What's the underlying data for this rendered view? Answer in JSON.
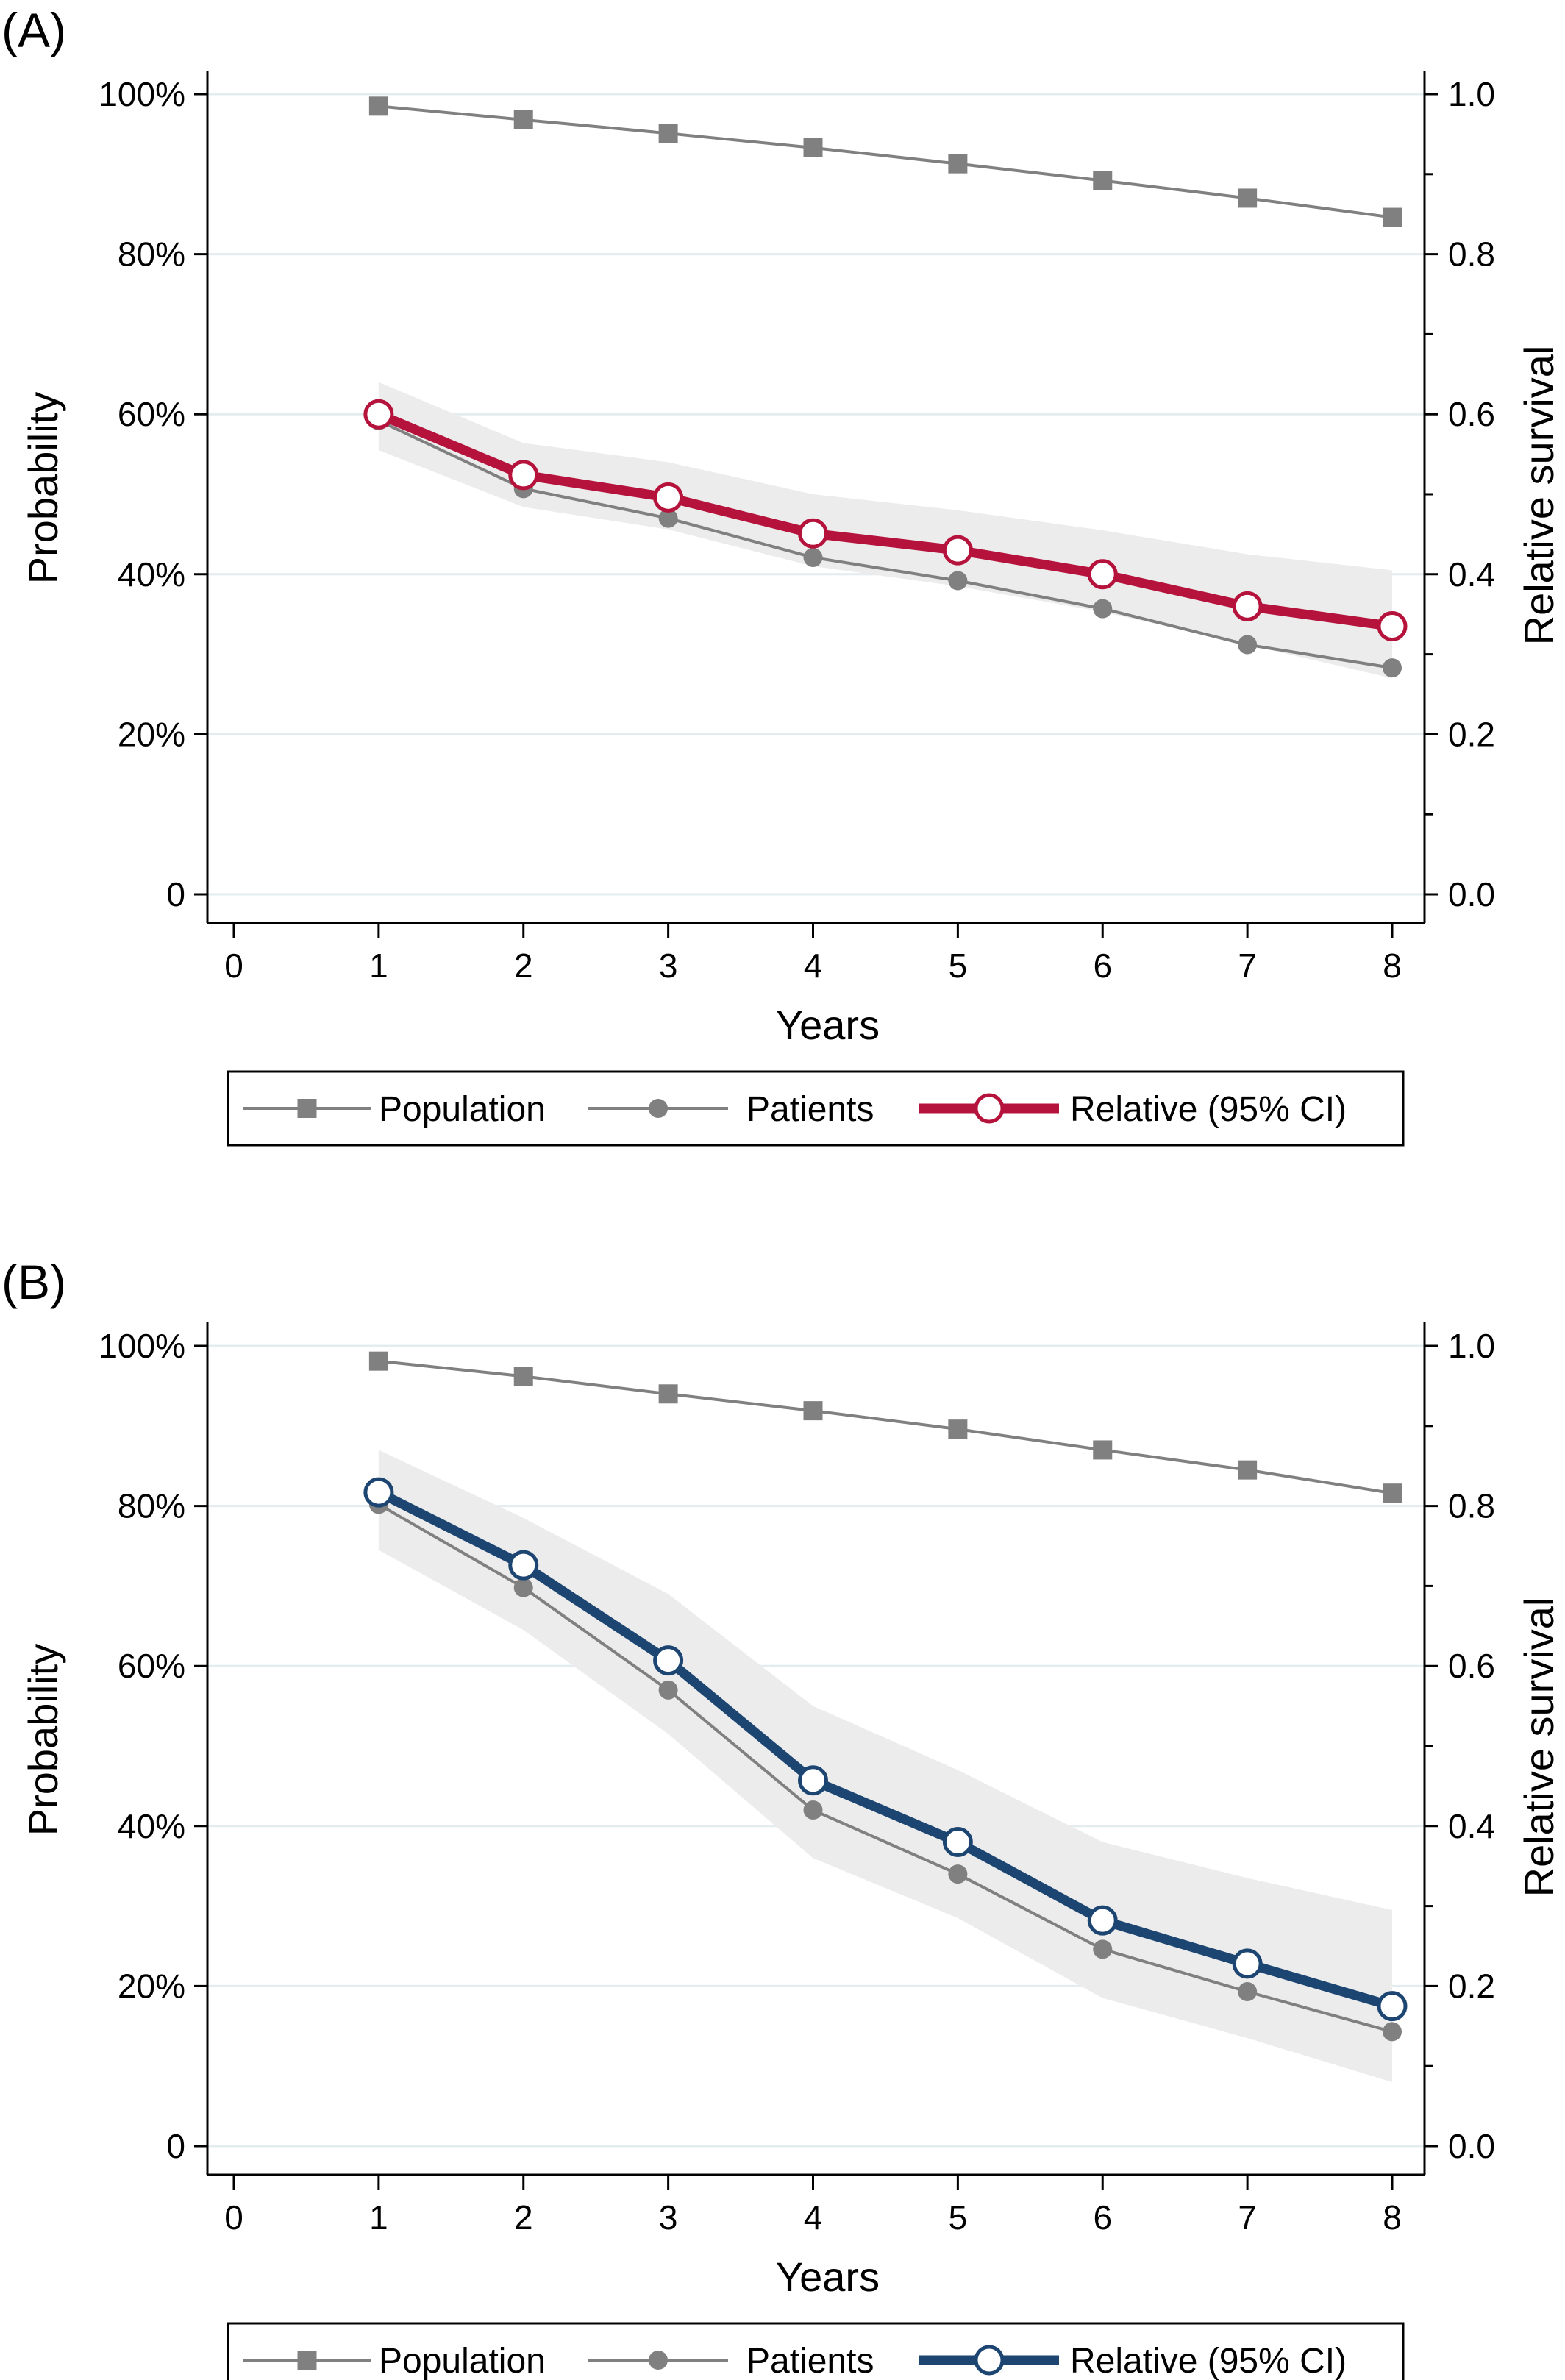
{
  "chart_data": [
    {
      "type": "line",
      "panel_label": "(A)",
      "xlabel": "Years",
      "ylabel": "Probability",
      "ylabel_right": "Relative survival",
      "x_ticks": [
        "0",
        "1",
        "2",
        "3",
        "4",
        "5",
        "6",
        "7",
        "8"
      ],
      "y_ticks_left": [
        "0",
        "20%",
        "40%",
        "60%",
        "80%",
        "100%"
      ],
      "y_ticks_right": [
        "0.0",
        "0.2",
        "0.4",
        "0.6",
        "0.8",
        "1.0"
      ],
      "xlim": [
        0,
        8
      ],
      "ylim": [
        0,
        1
      ],
      "grid": true,
      "legend_position": "bottom",
      "x": [
        1,
        2,
        3,
        4,
        5,
        6,
        7,
        8
      ],
      "series": [
        {
          "name": "Population",
          "values": [
            0.985,
            0.968,
            0.951,
            0.933,
            0.913,
            0.892,
            0.87,
            0.846
          ],
          "color": "#808080",
          "marker": "square"
        },
        {
          "name": "Patients",
          "values": [
            0.592,
            0.507,
            0.47,
            0.421,
            0.392,
            0.357,
            0.312,
            0.283
          ],
          "color": "#808080",
          "marker": "circle"
        },
        {
          "name": "Relative (95% CI)",
          "values": [
            0.6,
            0.524,
            0.496,
            0.451,
            0.43,
            0.4,
            0.36,
            0.335
          ],
          "color": "#b5123c",
          "marker": "hollow-circle",
          "ci_lower": [
            0.555,
            0.484,
            0.456,
            0.41,
            0.385,
            0.353,
            0.312,
            0.27
          ],
          "ci_upper": [
            0.64,
            0.564,
            0.54,
            0.5,
            0.48,
            0.455,
            0.425,
            0.405
          ]
        }
      ],
      "band_color": "#ececec"
    },
    {
      "type": "line",
      "panel_label": "(B)",
      "xlabel": "Years",
      "ylabel": "Probability",
      "ylabel_right": "Relative survival",
      "x_ticks": [
        "0",
        "1",
        "2",
        "3",
        "4",
        "5",
        "6",
        "7",
        "8"
      ],
      "y_ticks_left": [
        "0",
        "20%",
        "40%",
        "60%",
        "80%",
        "100%"
      ],
      "y_ticks_right": [
        "0.0",
        "0.2",
        "0.4",
        "0.6",
        "0.8",
        "1.0"
      ],
      "xlim": [
        0,
        8
      ],
      "ylim": [
        0,
        1
      ],
      "grid": true,
      "legend_position": "bottom",
      "x": [
        1,
        2,
        3,
        4,
        5,
        6,
        7,
        8
      ],
      "series": [
        {
          "name": "Population",
          "values": [
            0.981,
            0.962,
            0.94,
            0.919,
            0.896,
            0.87,
            0.845,
            0.816
          ],
          "color": "#808080",
          "marker": "square"
        },
        {
          "name": "Patients",
          "values": [
            0.802,
            0.698,
            0.57,
            0.42,
            0.34,
            0.246,
            0.193,
            0.143
          ],
          "color": "#808080",
          "marker": "circle"
        },
        {
          "name": "Relative (95% CI)",
          "values": [
            0.817,
            0.726,
            0.607,
            0.457,
            0.38,
            0.282,
            0.228,
            0.175
          ],
          "color": "#1d4572",
          "marker": "hollow-circle",
          "ci_lower": [
            0.745,
            0.645,
            0.515,
            0.36,
            0.285,
            0.185,
            0.135,
            0.08
          ],
          "ci_upper": [
            0.87,
            0.785,
            0.69,
            0.55,
            0.47,
            0.38,
            0.335,
            0.295
          ]
        }
      ],
      "band_color": "#ececec"
    }
  ]
}
